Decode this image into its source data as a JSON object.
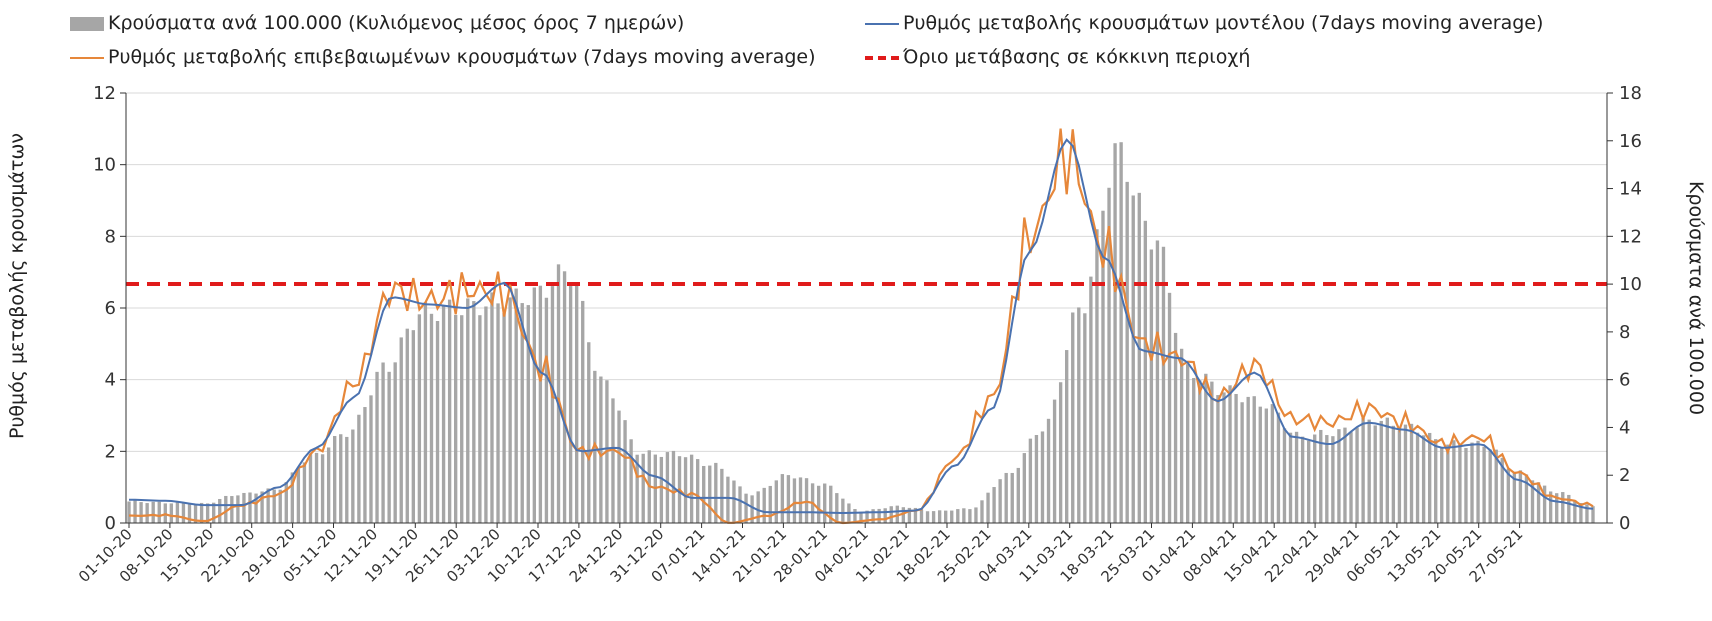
{
  "chart_data": {
    "type": "bar+line",
    "title": "",
    "ylabel_left": "Ρυθμός μεταβολής κρουσμάτων",
    "ylabel_right": "Κρούσματα ανά 100.000",
    "ylim_left": [
      0,
      12
    ],
    "ylim_right": [
      0,
      18
    ],
    "yticks_left": [
      "0",
      "2",
      "4",
      "6",
      "8",
      "10",
      "12"
    ],
    "yticks_right": [
      "0",
      "2",
      "4",
      "6",
      "8",
      "10",
      "12",
      "14",
      "16",
      "18"
    ],
    "x_tick_labels": [
      "01-10-20",
      "08-10-20",
      "15-10-20",
      "22-10-20",
      "29-10-20",
      "05-11-20",
      "12-11-20",
      "19-11-20",
      "26-11-20",
      "03-12-20",
      "10-12-20",
      "17-12-20",
      "24-12-20",
      "31-12-20",
      "07-01-21",
      "14-01-21",
      "21-01-21",
      "28-01-21",
      "04-02-21",
      "11-02-21",
      "18-02-21",
      "25-02-21",
      "04-03-21",
      "11-03-21",
      "18-03-21",
      "25-03-21",
      "01-04-21",
      "08-04-21",
      "15-04-21",
      "22-04-21",
      "29-04-21",
      "06-05-21",
      "13-05-21",
      "20-05-21",
      "27-05-21"
    ],
    "legend": {
      "bars": "Κρούσματα ανά 100.000 (Κυλιόμενος μέσος όρος 7 ημερών)",
      "model": "Ρυθμός μεταβολής κρουσμάτων μοντέλου (7days moving average)",
      "confirmed": "Ρυθμός μεταβολής επιβεβαιωμένων κρουσμάτων (7days moving average)",
      "threshold": "Όριο μετάβασης σε κόκκινη περιοχή"
    },
    "threshold_left": 6.67,
    "series_weekly": {
      "bars_right_axis": [
        0.9,
        0.85,
        0.8,
        1.2,
        1.4,
        2.8,
        3.8,
        6.5,
        8.8,
        9.0,
        9.2,
        9.5,
        10.5,
        5.8,
        2.9,
        2.9,
        2.4,
        1.2,
        2.0,
        1.6,
        0.5,
        0.7,
        0.5,
        0.6,
        2.0,
        4.0,
        9.0,
        15.5,
        12.0,
        6.3,
        5.5,
        5.0,
        3.6,
        3.8,
        4.3,
        4.0,
        3.3,
        3.3,
        2.1,
        1.3,
        0.7
      ],
      "model_left_axis": [
        0.65,
        0.62,
        0.5,
        0.5,
        1.0,
        2.1,
        3.5,
        6.3,
        6.1,
        6.0,
        6.7,
        4.2,
        2.0,
        2.1,
        1.3,
        0.7,
        0.7,
        0.3,
        0.3,
        0.28,
        0.3,
        0.35,
        1.6,
        3.2,
        7.6,
        10.7,
        7.4,
        4.8,
        4.6,
        3.4,
        4.2,
        2.4,
        2.2,
        2.8,
        2.6,
        2.1,
        2.2,
        1.2,
        0.6,
        0.4
      ],
      "confirmed_left_axis": [
        0.2,
        0.22,
        0.05,
        0.5,
        0.8,
        2.0,
        3.9,
        6.5,
        6.2,
        6.5,
        6.4,
        4.3,
        2.0,
        2.0,
        1.0,
        0.8,
        0.0,
        0.2,
        0.6,
        0.0,
        0.1,
        0.35,
        1.8,
        3.5,
        8.0,
        10.3,
        7.6,
        5.0,
        4.6,
        3.5,
        4.4,
        2.9,
        2.8,
        3.2,
        2.8,
        2.2,
        2.4,
        1.4,
        0.7,
        0.5
      ]
    },
    "colors": {
      "bars": "#a6a6a6",
      "model": "#4a72b0",
      "confirmed": "#e6873a",
      "threshold": "#e01b1b",
      "grid": "#d9d9d9"
    }
  }
}
